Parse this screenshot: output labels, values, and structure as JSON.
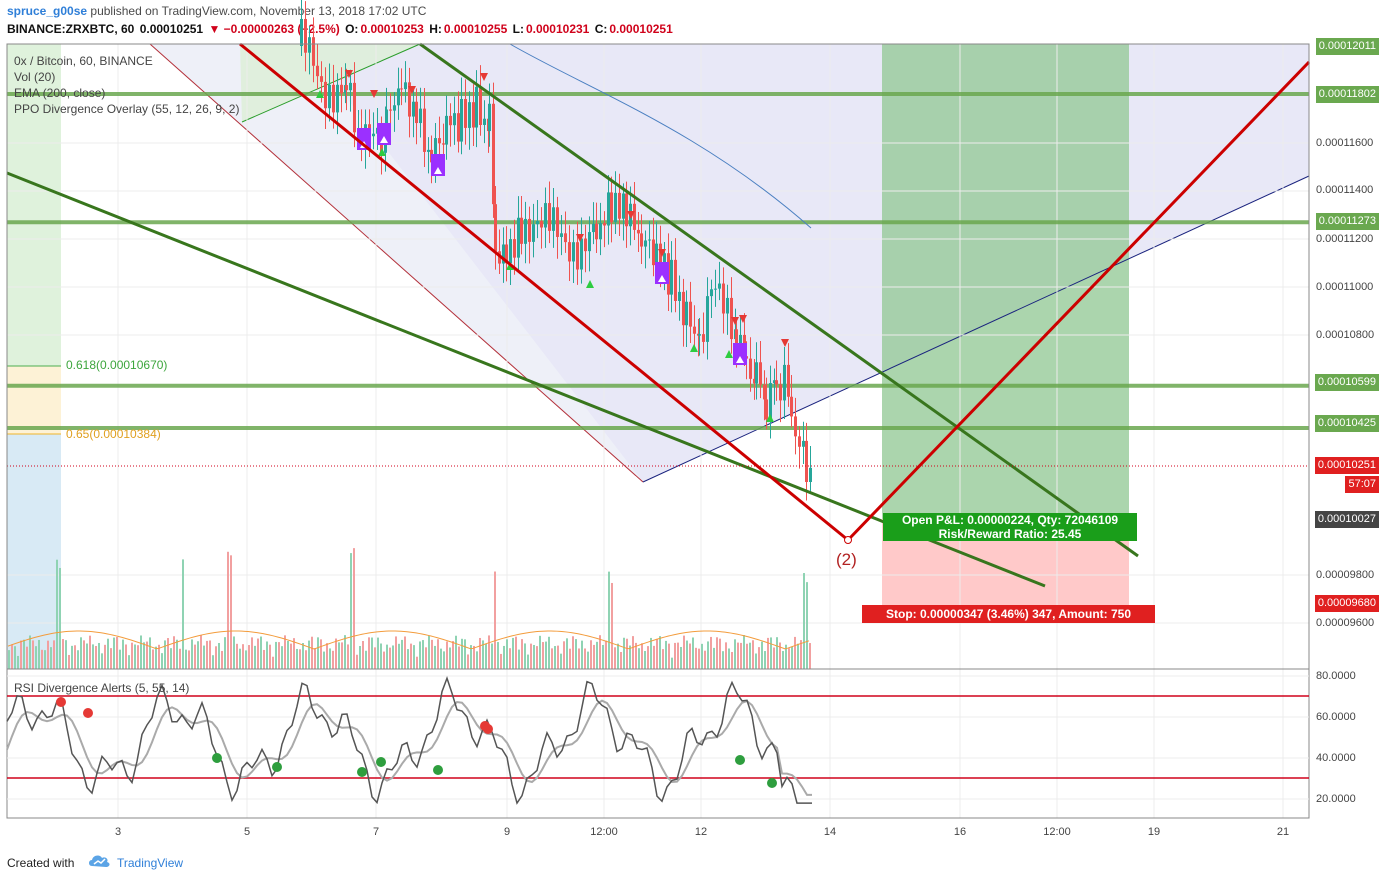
{
  "header": {
    "publisher": "spruce_g00se",
    "published_text": " published on TradingView.com, November 13, 2018 17:02 UTC",
    "symbol": "BINANCE:ZRXBTC, 60",
    "last": "0.00010251",
    "change": "▼ −0.00000263 (−2.5%)",
    "o_label": "O:",
    "o_value": "0.00010253",
    "h_label": "H:",
    "h_value": "0.00010255",
    "l_label": "L:",
    "l_value": "0.00010231",
    "c_label": "C:",
    "c_value": "0.00010251"
  },
  "legend": {
    "title": "0x / Bitcoin, 60, BINANCE",
    "vol": "Vol (20)",
    "ema": "EMA (200, close)",
    "ppo": "PPO Divergence Overlay (55, 12, 26, 9, 2)",
    "rsi": "RSI Divergence Alerts (5, 55, 14)"
  },
  "fib": {
    "level1": "0.618(0.00010670)",
    "level2": "0.65(0.00010384)"
  },
  "trade": {
    "open_pl": "Open P&L: 0.00000224, Qty: 72046109",
    "rr": "Risk/Reward Ratio: 25.45",
    "stop": "Stop: 0.00000347 (3.46%) 347, Amount: 750",
    "wave": "(2)"
  },
  "price_tags": {
    "top": "0.00012011",
    "t1": "0.00011802",
    "t2": "0.00011273",
    "t3": "0.00010599",
    "t4": "0.00010425",
    "last": "0.00010251",
    "countdown": "57:07",
    "entry": "0.00010027",
    "stop": "0.00009680"
  },
  "colors": {
    "bull": "#26a69a",
    "bear": "#ef5350",
    "hline": "#6aa84f",
    "trend_red": "#cc0000",
    "trend_green": "#38761d",
    "channel": "#e6e6f5",
    "rsi": "#555555"
  },
  "footer": {
    "created": "Created with",
    "brand": "TradingView"
  },
  "chart_data": {
    "type": "line",
    "title": "0x / Bitcoin, 60, BINANCE",
    "y_axis_ticks": [
      "0.00011600",
      "0.00011400",
      "0.00011200",
      "0.00011000",
      "0.00010800",
      "0.00009800",
      "0.00009600"
    ],
    "x_axis_ticks": [
      "3",
      "5",
      "7",
      "9",
      "12:00",
      "12",
      "14",
      "16",
      "12:00",
      "19",
      "21"
    ],
    "ylim": [
      9.4e-05,
      0.000121
    ],
    "horizontal_levels": [
      0.00011802,
      0.00011273,
      0.00010599,
      0.00010425
    ],
    "current_price": 0.00010251,
    "rsi": {
      "ticks": [
        "80.0000",
        "60.0000",
        "40.0000",
        "20.0000"
      ],
      "upper_band": 70,
      "lower_band": 30
    }
  }
}
